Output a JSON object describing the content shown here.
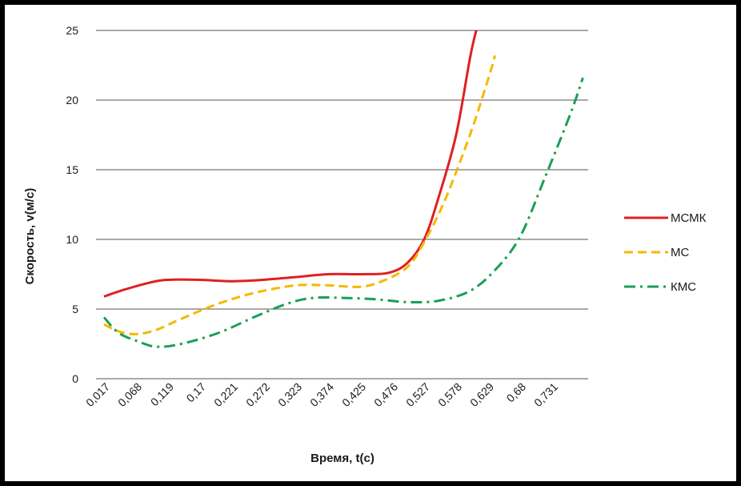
{
  "chart_data": {
    "type": "line",
    "title": "",
    "xlabel": "Время, t(с)",
    "ylabel": "Скорость, v(м/с)",
    "ylim": [
      0,
      25
    ],
    "yticks": [
      "0",
      "5",
      "10",
      "15",
      "20",
      "25"
    ],
    "categories": [
      "0,017",
      "0,068",
      "0,119",
      "0,17",
      "0,221",
      "0,272",
      "0,323",
      "0,374",
      "0,425",
      "0,476",
      "0,527",
      "0,578",
      "0,629",
      "0,68",
      "0,731"
    ],
    "grid": "horizontal",
    "legend_position": "right",
    "series": [
      {
        "name": "МСМК",
        "color": "#e02020",
        "style": "solid",
        "points": [
          [
            0.017,
            5.9
          ],
          [
            0.05,
            6.4
          ],
          [
            0.09,
            6.9
          ],
          [
            0.119,
            7.1
          ],
          [
            0.17,
            7.1
          ],
          [
            0.22,
            7.0
          ],
          [
            0.27,
            7.1
          ],
          [
            0.323,
            7.3
          ],
          [
            0.374,
            7.5
          ],
          [
            0.425,
            7.5
          ],
          [
            0.47,
            7.6
          ],
          [
            0.5,
            8.3
          ],
          [
            0.527,
            10.0
          ],
          [
            0.55,
            13.0
          ],
          [
            0.578,
            17.5
          ],
          [
            0.6,
            23.0
          ],
          [
            0.61,
            25.0
          ]
        ]
      },
      {
        "name": "МС",
        "color": "#f5b800",
        "style": "dashed",
        "points": [
          [
            0.017,
            3.9
          ],
          [
            0.04,
            3.4
          ],
          [
            0.068,
            3.2
          ],
          [
            0.1,
            3.5
          ],
          [
            0.14,
            4.3
          ],
          [
            0.2,
            5.4
          ],
          [
            0.26,
            6.2
          ],
          [
            0.323,
            6.7
          ],
          [
            0.374,
            6.7
          ],
          [
            0.425,
            6.6
          ],
          [
            0.46,
            7.0
          ],
          [
            0.5,
            8.0
          ],
          [
            0.527,
            9.8
          ],
          [
            0.56,
            12.8
          ],
          [
            0.6,
            17.5
          ],
          [
            0.629,
            21.5
          ],
          [
            0.64,
            23.2
          ]
        ]
      },
      {
        "name": "КМС",
        "color": "#1aa053",
        "style": "dashdot",
        "points": [
          [
            0.017,
            4.4
          ],
          [
            0.04,
            3.3
          ],
          [
            0.07,
            2.7
          ],
          [
            0.1,
            2.3
          ],
          [
            0.14,
            2.5
          ],
          [
            0.2,
            3.3
          ],
          [
            0.26,
            4.5
          ],
          [
            0.31,
            5.4
          ],
          [
            0.35,
            5.8
          ],
          [
            0.4,
            5.8
          ],
          [
            0.45,
            5.7
          ],
          [
            0.5,
            5.5
          ],
          [
            0.55,
            5.6
          ],
          [
            0.6,
            6.3
          ],
          [
            0.64,
            7.8
          ],
          [
            0.68,
            10.2
          ],
          [
            0.72,
            14.5
          ],
          [
            0.76,
            19.0
          ],
          [
            0.78,
            21.6
          ]
        ]
      }
    ]
  }
}
